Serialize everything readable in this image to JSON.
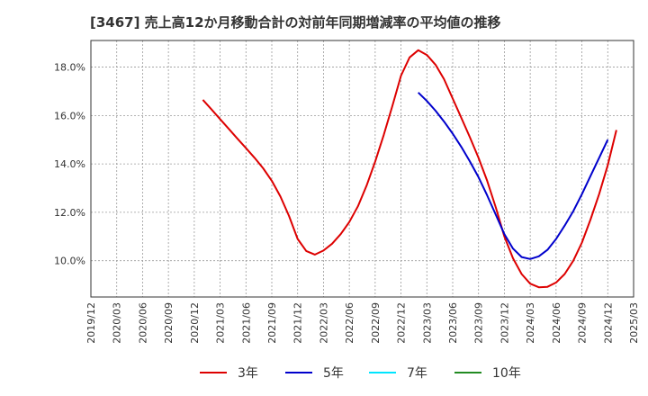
{
  "chart_data": {
    "type": "line",
    "title": "[3467]  売上高12か月移動合計の対前年同期増減率の平均値の推移",
    "xlabel": "",
    "ylabel": "",
    "x_ticks": [
      "2019/12",
      "2020/03",
      "2020/06",
      "2020/09",
      "2020/12",
      "2021/03",
      "2021/06",
      "2021/09",
      "2021/12",
      "2022/03",
      "2022/06",
      "2022/09",
      "2022/12",
      "2023/03",
      "2023/06",
      "2023/09",
      "2023/12",
      "2024/03",
      "2024/06",
      "2024/09",
      "2024/12",
      "2025/03"
    ],
    "y_ticks": [
      "10.0%",
      "12.0%",
      "14.0%",
      "16.0%",
      "18.0%"
    ],
    "ylim": [
      8.5,
      19.1
    ],
    "grid": true,
    "legend_position": "bottom",
    "series": [
      {
        "name": "3年",
        "color": "#dd0000",
        "points": [
          [
            "2021/01",
            16.65
          ],
          [
            "2021/02",
            16.25
          ],
          [
            "2021/03",
            15.85
          ],
          [
            "2021/04",
            15.45
          ],
          [
            "2021/05",
            15.05
          ],
          [
            "2021/06",
            14.65
          ],
          [
            "2021/07",
            14.25
          ],
          [
            "2021/08",
            13.82
          ],
          [
            "2021/09",
            13.3
          ],
          [
            "2021/10",
            12.65
          ],
          [
            "2021/11",
            11.85
          ],
          [
            "2021/12",
            10.9
          ],
          [
            "2022/01",
            10.4
          ],
          [
            "2022/02",
            10.25
          ],
          [
            "2022/03",
            10.42
          ],
          [
            "2022/04",
            10.7
          ],
          [
            "2022/05",
            11.1
          ],
          [
            "2022/06",
            11.6
          ],
          [
            "2022/07",
            12.25
          ],
          [
            "2022/08",
            13.1
          ],
          [
            "2022/09",
            14.1
          ],
          [
            "2022/10",
            15.2
          ],
          [
            "2022/11",
            16.4
          ],
          [
            "2022/12",
            17.65
          ],
          [
            "2023/01",
            18.4
          ],
          [
            "2023/02",
            18.7
          ],
          [
            "2023/03",
            18.5
          ],
          [
            "2023/04",
            18.1
          ],
          [
            "2023/05",
            17.5
          ],
          [
            "2023/06",
            16.7
          ],
          [
            "2023/07",
            15.9
          ],
          [
            "2023/08",
            15.1
          ],
          [
            "2023/09",
            14.25
          ],
          [
            "2023/10",
            13.3
          ],
          [
            "2023/11",
            12.2
          ],
          [
            "2023/12",
            11.0
          ],
          [
            "2024/01",
            10.1
          ],
          [
            "2024/02",
            9.45
          ],
          [
            "2024/03",
            9.05
          ],
          [
            "2024/04",
            8.9
          ],
          [
            "2024/05",
            8.92
          ],
          [
            "2024/06",
            9.1
          ],
          [
            "2024/07",
            9.45
          ],
          [
            "2024/08",
            10.0
          ],
          [
            "2024/09",
            10.75
          ],
          [
            "2024/10",
            11.7
          ],
          [
            "2024/11",
            12.75
          ],
          [
            "2024/12",
            13.95
          ],
          [
            "2025/01",
            15.4
          ]
        ]
      },
      {
        "name": "5年",
        "color": "#0000cc",
        "points": [
          [
            "2023/02",
            16.95
          ],
          [
            "2023/03",
            16.6
          ],
          [
            "2023/04",
            16.2
          ],
          [
            "2023/05",
            15.75
          ],
          [
            "2023/06",
            15.25
          ],
          [
            "2023/07",
            14.7
          ],
          [
            "2023/08",
            14.1
          ],
          [
            "2023/09",
            13.45
          ],
          [
            "2023/10",
            12.7
          ],
          [
            "2023/11",
            11.9
          ],
          [
            "2023/12",
            11.1
          ],
          [
            "2024/01",
            10.5
          ],
          [
            "2024/02",
            10.15
          ],
          [
            "2024/03",
            10.07
          ],
          [
            "2024/04",
            10.18
          ],
          [
            "2024/05",
            10.45
          ],
          [
            "2024/06",
            10.9
          ],
          [
            "2024/07",
            11.45
          ],
          [
            "2024/08",
            12.05
          ],
          [
            "2024/09",
            12.75
          ],
          [
            "2024/10",
            13.5
          ],
          [
            "2024/11",
            14.25
          ],
          [
            "2024/12",
            15.0
          ]
        ]
      },
      {
        "name": "7年",
        "color": "#00e5ff",
        "points": []
      },
      {
        "name": "10年",
        "color": "#228b22",
        "points": []
      }
    ]
  }
}
